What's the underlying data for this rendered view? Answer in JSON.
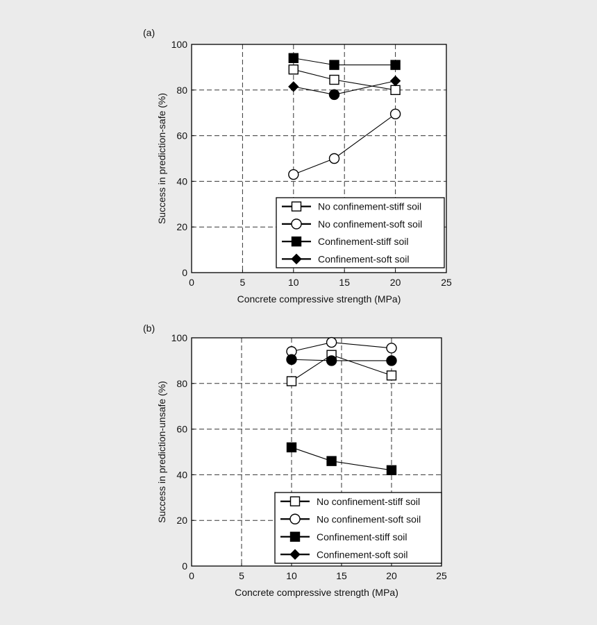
{
  "chart_data": [
    {
      "type": "line",
      "panel_label": "(a)",
      "xlabel": "Concrete compressive strength (MPa)",
      "ylabel": "Success in prediction-safe (%)",
      "xlim": [
        0,
        25
      ],
      "ylim": [
        0,
        100
      ],
      "xticks": [
        0,
        5,
        10,
        15,
        20,
        25
      ],
      "yticks": [
        0,
        20,
        40,
        60,
        80,
        100
      ],
      "grid": true,
      "legend_position": "bottom-right",
      "series": [
        {
          "name": "No confinement-stiff soil",
          "marker": "square-open",
          "x": [
            10,
            14,
            20
          ],
          "values": [
            89,
            84.5,
            80
          ]
        },
        {
          "name": "No confinement-soft soil",
          "marker": "circle-open",
          "x": [
            10,
            14,
            20
          ],
          "values": [
            43,
            50,
            69.5
          ]
        },
        {
          "name": "Confinement-stiff soil",
          "marker": "square-filled",
          "x": [
            10,
            14,
            20
          ],
          "values": [
            94,
            91,
            91
          ]
        },
        {
          "name": "Confinement-soft soil",
          "marker": "diamond-filled",
          "x": [
            10,
            14,
            20
          ],
          "values": [
            81.5,
            78,
            84
          ]
        }
      ],
      "extra_points": [
        {
          "marker": "circle-filled",
          "x": 14,
          "y": 78
        }
      ]
    },
    {
      "type": "line",
      "panel_label": "(b)",
      "xlabel": "Concrete compressive strength (MPa)",
      "ylabel": "Success in prediction-unsafe (%)",
      "xlim": [
        0,
        25
      ],
      "ylim": [
        0,
        100
      ],
      "xticks": [
        0,
        5,
        10,
        15,
        20,
        25
      ],
      "yticks": [
        0,
        20,
        40,
        60,
        80,
        100
      ],
      "grid": true,
      "legend_position": "bottom-right",
      "series": [
        {
          "name": "No confinement-stiff soil",
          "marker": "square-open",
          "x": [
            10,
            14,
            20
          ],
          "values": [
            81,
            92.5,
            83.5
          ]
        },
        {
          "name": "No confinement-soft soil",
          "marker": "circle-open",
          "x": [
            10,
            14,
            20
          ],
          "values": [
            94,
            98,
            95.5
          ]
        },
        {
          "name": "Confinement-stiff soil",
          "marker": "square-filled",
          "x": [
            10,
            14,
            20
          ],
          "values": [
            52,
            46,
            42
          ]
        },
        {
          "name": "Confinement-soft soil",
          "marker": "diamond-filled",
          "x": [],
          "values": []
        }
      ],
      "extra_series": [
        {
          "marker": "circle-filled",
          "x": [
            10,
            14,
            20
          ],
          "values": [
            90.5,
            90,
            90
          ]
        }
      ]
    }
  ]
}
